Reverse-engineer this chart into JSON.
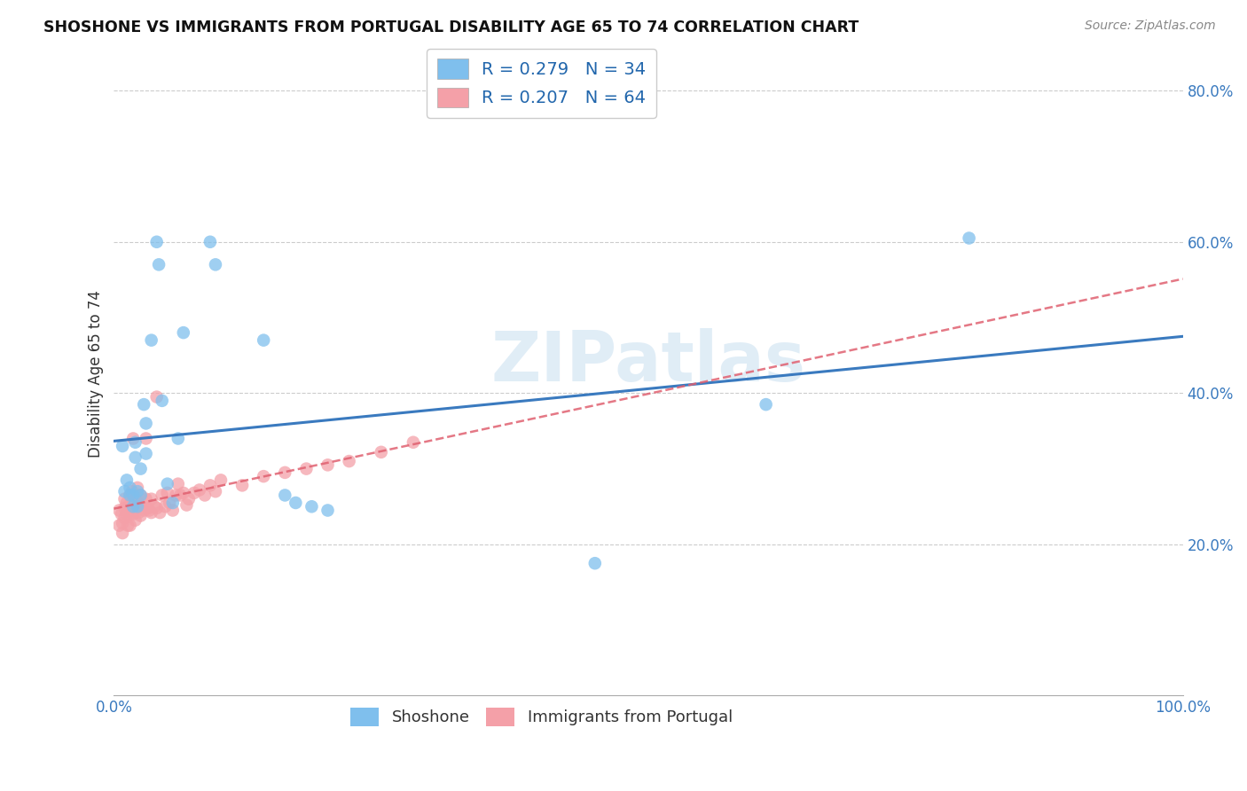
{
  "title": "SHOSHONE VS IMMIGRANTS FROM PORTUGAL DISABILITY AGE 65 TO 74 CORRELATION CHART",
  "source": "Source: ZipAtlas.com",
  "ylabel": "Disability Age 65 to 74",
  "xlim": [
    0.0,
    1.0
  ],
  "ylim": [
    0.0,
    0.85
  ],
  "ytick_vals": [
    0.2,
    0.4,
    0.6,
    0.8
  ],
  "ytick_labels": [
    "20.0%",
    "40.0%",
    "60.0%",
    "80.0%"
  ],
  "xtick_vals": [
    0.0,
    0.2,
    0.4,
    0.6,
    0.8,
    1.0
  ],
  "xtick_labels": [
    "0.0%",
    "",
    "",
    "",
    "",
    "100.0%"
  ],
  "shoshone_color": "#7fbfed",
  "portugal_color": "#f4a0a8",
  "shoshone_line_color": "#3a7abf",
  "portugal_line_color": "#e06070",
  "watermark": "ZIPatlas",
  "shoshone_label": "Shoshone",
  "portugal_label": "Immigrants from Portugal",
  "legend_r1": "R = 0.279",
  "legend_n1": "N = 34",
  "legend_r2": "R = 0.207",
  "legend_n2": "N = 64",
  "shoshone_x": [
    0.008,
    0.01,
    0.012,
    0.015,
    0.015,
    0.018,
    0.018,
    0.02,
    0.02,
    0.022,
    0.022,
    0.025,
    0.025,
    0.028,
    0.03,
    0.03,
    0.035,
    0.04,
    0.042,
    0.045,
    0.05,
    0.055,
    0.06,
    0.065,
    0.09,
    0.095,
    0.14,
    0.16,
    0.17,
    0.185,
    0.2,
    0.45,
    0.61,
    0.8
  ],
  "shoshone_y": [
    0.33,
    0.27,
    0.285,
    0.275,
    0.265,
    0.265,
    0.25,
    0.335,
    0.315,
    0.27,
    0.25,
    0.3,
    0.265,
    0.385,
    0.36,
    0.32,
    0.47,
    0.6,
    0.57,
    0.39,
    0.28,
    0.255,
    0.34,
    0.48,
    0.6,
    0.57,
    0.47,
    0.265,
    0.255,
    0.25,
    0.245,
    0.175,
    0.385,
    0.605
  ],
  "portugal_x": [
    0.005,
    0.005,
    0.007,
    0.008,
    0.008,
    0.01,
    0.01,
    0.01,
    0.012,
    0.012,
    0.013,
    0.015,
    0.015,
    0.015,
    0.015,
    0.017,
    0.018,
    0.018,
    0.018,
    0.02,
    0.02,
    0.02,
    0.022,
    0.022,
    0.023,
    0.025,
    0.025,
    0.025,
    0.028,
    0.03,
    0.03,
    0.032,
    0.033,
    0.035,
    0.035,
    0.038,
    0.04,
    0.04,
    0.043,
    0.045,
    0.048,
    0.05,
    0.052,
    0.055,
    0.058,
    0.06,
    0.062,
    0.065,
    0.068,
    0.07,
    0.075,
    0.08,
    0.085,
    0.09,
    0.095,
    0.1,
    0.12,
    0.14,
    0.16,
    0.18,
    0.2,
    0.22,
    0.25,
    0.28
  ],
  "portugal_y": [
    0.245,
    0.225,
    0.24,
    0.228,
    0.215,
    0.26,
    0.248,
    0.235,
    0.255,
    0.24,
    0.225,
    0.265,
    0.252,
    0.24,
    0.225,
    0.27,
    0.34,
    0.255,
    0.24,
    0.26,
    0.248,
    0.232,
    0.275,
    0.255,
    0.242,
    0.265,
    0.252,
    0.238,
    0.245,
    0.34,
    0.26,
    0.248,
    0.245,
    0.26,
    0.242,
    0.25,
    0.395,
    0.248,
    0.242,
    0.265,
    0.25,
    0.268,
    0.255,
    0.245,
    0.265,
    0.28,
    0.265,
    0.268,
    0.252,
    0.26,
    0.268,
    0.272,
    0.265,
    0.278,
    0.27,
    0.285,
    0.278,
    0.29,
    0.295,
    0.3,
    0.305,
    0.31,
    0.322,
    0.335
  ]
}
